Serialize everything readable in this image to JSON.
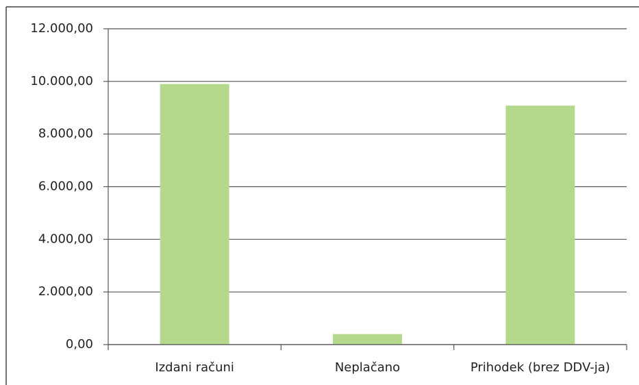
{
  "chart_data": {
    "type": "bar",
    "categories": [
      "Izdani računi",
      "Neplačano",
      "Prihodek (brez DDV-ja)"
    ],
    "values": [
      9900,
      400,
      9080
    ],
    "color": "#b5d98c",
    "ylim": [
      0,
      12000
    ],
    "yticks": [
      {
        "value": 0,
        "label": "0,00"
      },
      {
        "value": 2000,
        "label": "2.000,00"
      },
      {
        "value": 4000,
        "label": "4.000,00"
      },
      {
        "value": 6000,
        "label": "6.000,00"
      },
      {
        "value": 8000,
        "label": "8.000,00"
      },
      {
        "value": 10000,
        "label": "10.000,00"
      },
      {
        "value": 12000,
        "label": "12.000,00"
      }
    ],
    "grid": true
  }
}
